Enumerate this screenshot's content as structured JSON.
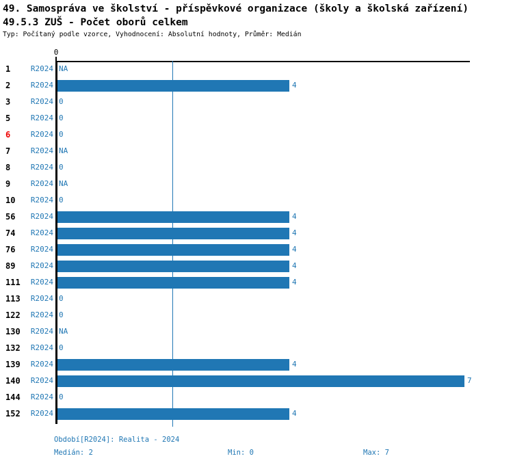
{
  "header": {
    "title_line1": "49. Samospráva ve školství - příspěvkové organizace (školy a školská zařízení)",
    "title_line2": "49.5.3 ZUŠ - Počet oborů celkem",
    "meta": "Typ: Počítaný podle vzorce, Vyhodnocení: Absolutní hodnoty, Průměr: Medián"
  },
  "colors": {
    "bar": "#2077b4",
    "blue_text": "#2077b4",
    "median_line": "#2077b4",
    "highlight_red": "#ee0000",
    "axis": "#000000"
  },
  "chart_data": {
    "type": "bar",
    "orientation": "horizontal",
    "title": "49.5.3 ZUŠ - Počet oborů celkem",
    "series_name": "R2024",
    "x_axis": {
      "tick_labels": [
        "0"
      ],
      "xlim": [
        0,
        7.1
      ],
      "grid": false
    },
    "median_value": 2,
    "min_value": 0,
    "max_value": 7,
    "rows": [
      {
        "category": "1",
        "value": null,
        "label": "NA",
        "highlight": false
      },
      {
        "category": "2",
        "value": 4,
        "label": "4",
        "highlight": false
      },
      {
        "category": "3",
        "value": 0,
        "label": "0",
        "highlight": false
      },
      {
        "category": "5",
        "value": 0,
        "label": "0",
        "highlight": false
      },
      {
        "category": "6",
        "value": 0,
        "label": "0",
        "highlight": true
      },
      {
        "category": "7",
        "value": null,
        "label": "NA",
        "highlight": false
      },
      {
        "category": "8",
        "value": 0,
        "label": "0",
        "highlight": false
      },
      {
        "category": "9",
        "value": null,
        "label": "NA",
        "highlight": false
      },
      {
        "category": "10",
        "value": 0,
        "label": "0",
        "highlight": false
      },
      {
        "category": "56",
        "value": 4,
        "label": "4",
        "highlight": false
      },
      {
        "category": "74",
        "value": 4,
        "label": "4",
        "highlight": false
      },
      {
        "category": "76",
        "value": 4,
        "label": "4",
        "highlight": false
      },
      {
        "category": "89",
        "value": 4,
        "label": "4",
        "highlight": false
      },
      {
        "category": "111",
        "value": 4,
        "label": "4",
        "highlight": false
      },
      {
        "category": "113",
        "value": 0,
        "label": "0",
        "highlight": false
      },
      {
        "category": "122",
        "value": 0,
        "label": "0",
        "highlight": false
      },
      {
        "category": "130",
        "value": null,
        "label": "NA",
        "highlight": false
      },
      {
        "category": "132",
        "value": 0,
        "label": "0",
        "highlight": false
      },
      {
        "category": "139",
        "value": 4,
        "label": "4",
        "highlight": false
      },
      {
        "category": "140",
        "value": 7,
        "label": "7",
        "highlight": false
      },
      {
        "category": "144",
        "value": 0,
        "label": "0",
        "highlight": false
      },
      {
        "category": "152",
        "value": 4,
        "label": "4",
        "highlight": false
      }
    ]
  },
  "footer": {
    "period_line": "Období[R2024]: Realita - 2024",
    "median_label": "Medián: 2",
    "min_label": "Min: 0",
    "max_label": "Max: 7"
  }
}
